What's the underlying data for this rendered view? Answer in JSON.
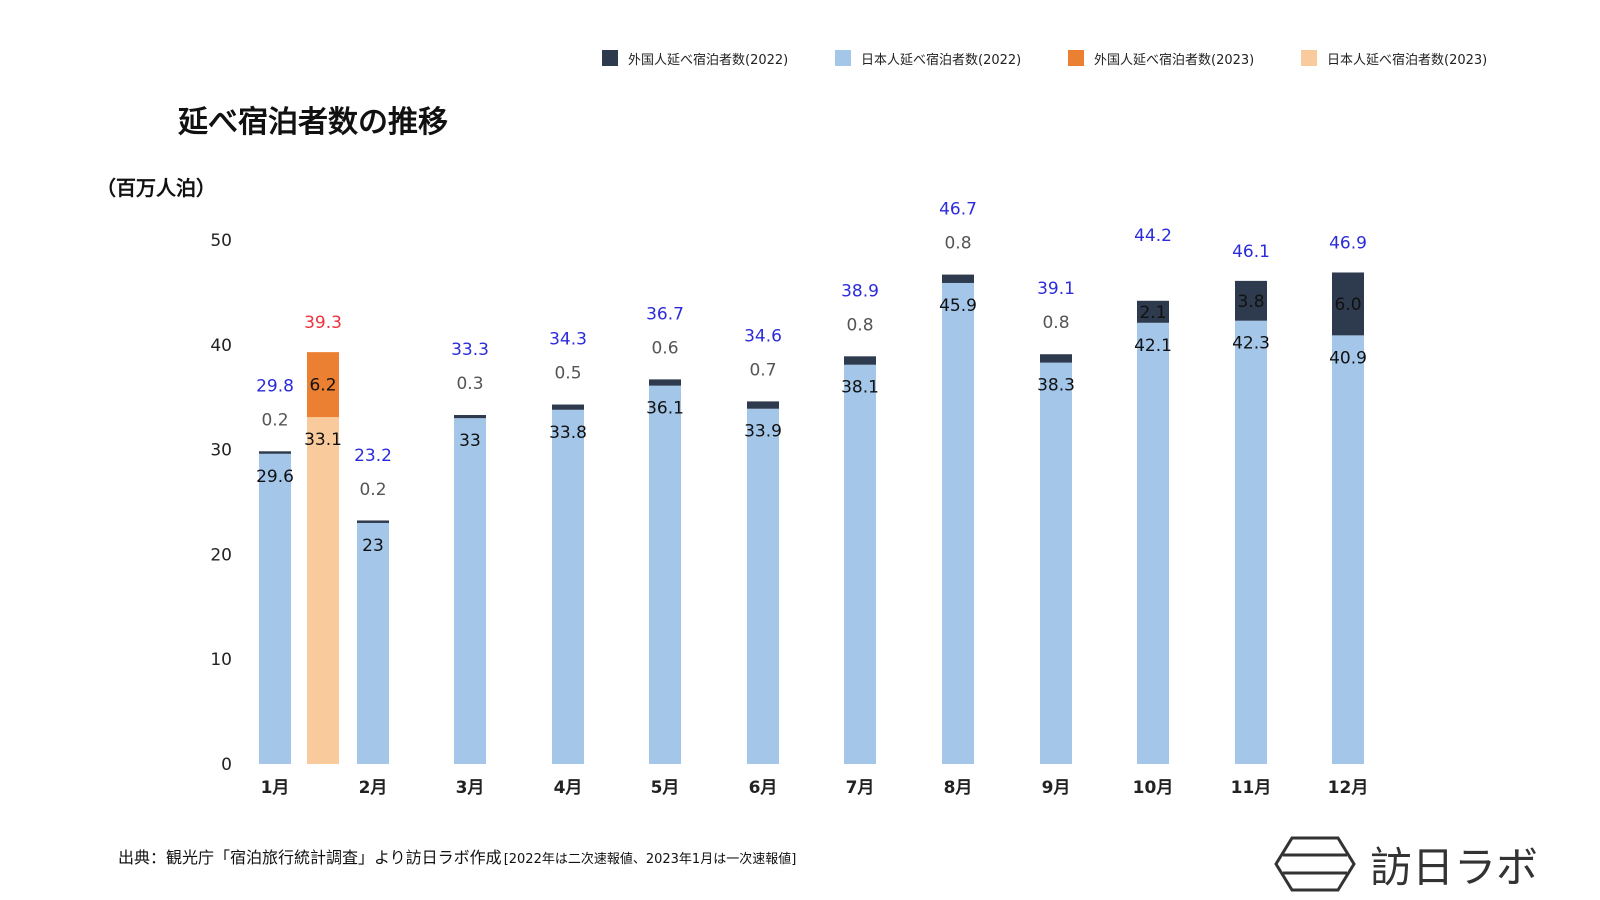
{
  "colors": {
    "foreign_2022": "#2e3a4e",
    "japanese_2022": "#a3c6e9",
    "foreign_2023": "#ec8032",
    "japanese_2023": "#f9cb9c",
    "total_2022": "#2b2bdc",
    "total_2023": "#f0313c"
  },
  "footer": {
    "source": "出典：観光庁「宿泊旅行統計調査」より訪日ラボ作成",
    "note": "[2022年は二次速報値、2023年1月は一次速報値]"
  },
  "brand": {
    "name": "訪日ラボ",
    "icon": "hexagon-logo-icon"
  },
  "chart_data": {
    "type": "bar",
    "stacked": true,
    "title": "延べ宿泊者数の推移",
    "ylabel": "（百万人泊）",
    "ylim": [
      0,
      50
    ],
    "yticks": [
      0,
      10,
      20,
      30,
      40,
      50
    ],
    "grid": false,
    "legend_position": "top-right",
    "legend": [
      {
        "label": "外国人延べ宿泊者数(2022)",
        "color_key": "foreign_2022"
      },
      {
        "label": "日本人延べ宿泊者数(2022)",
        "color_key": "japanese_2022"
      },
      {
        "label": "外国人延べ宿泊者数(2023)",
        "color_key": "foreign_2023"
      },
      {
        "label": "日本人延べ宿泊者数(2023)",
        "color_key": "japanese_2023"
      }
    ],
    "categories": [
      "1月",
      "2月",
      "3月",
      "4月",
      "5月",
      "6月",
      "7月",
      "8月",
      "9月",
      "10月",
      "11月",
      "12月"
    ],
    "bars": [
      {
        "category": "1月",
        "year": "2022",
        "japanese": 29.6,
        "foreign": 0.2,
        "total": 29.8,
        "japanese_label": "29.6",
        "foreign_label": "0.2",
        "total_label": "29.8"
      },
      {
        "category": "1月",
        "year": "2023",
        "japanese": 33.1,
        "foreign": 6.2,
        "total": 39.3,
        "japanese_label": "33.1",
        "foreign_label": "6.2",
        "total_label": "39.3"
      },
      {
        "category": "2月",
        "year": "2022",
        "japanese": 23,
        "foreign": 0.2,
        "total": 23.2,
        "japanese_label": "23",
        "foreign_label": "0.2",
        "total_label": "23.2"
      },
      {
        "category": "3月",
        "year": "2022",
        "japanese": 33,
        "foreign": 0.3,
        "total": 33.3,
        "japanese_label": "33",
        "foreign_label": "0.3",
        "total_label": "33.3"
      },
      {
        "category": "4月",
        "year": "2022",
        "japanese": 33.8,
        "foreign": 0.5,
        "total": 34.3,
        "japanese_label": "33.8",
        "foreign_label": "0.5",
        "total_label": "34.3"
      },
      {
        "category": "5月",
        "year": "2022",
        "japanese": 36.1,
        "foreign": 0.6,
        "total": 36.7,
        "japanese_label": "36.1",
        "foreign_label": "0.6",
        "total_label": "36.7"
      },
      {
        "category": "6月",
        "year": "2022",
        "japanese": 33.9,
        "foreign": 0.7,
        "total": 34.6,
        "japanese_label": "33.9",
        "foreign_label": "0.7",
        "total_label": "34.6"
      },
      {
        "category": "7月",
        "year": "2022",
        "japanese": 38.1,
        "foreign": 0.8,
        "total": 38.9,
        "japanese_label": "38.1",
        "foreign_label": "0.8",
        "total_label": "38.9"
      },
      {
        "category": "8月",
        "year": "2022",
        "japanese": 45.9,
        "foreign": 0.8,
        "total": 46.7,
        "japanese_label": "45.9",
        "foreign_label": "0.8",
        "total_label": "46.7"
      },
      {
        "category": "9月",
        "year": "2022",
        "japanese": 38.3,
        "foreign": 0.8,
        "total": 39.1,
        "japanese_label": "38.3",
        "foreign_label": "0.8",
        "total_label": "39.1"
      },
      {
        "category": "10月",
        "year": "2022",
        "japanese": 42.1,
        "foreign": 2.1,
        "total": 44.2,
        "japanese_label": "42.1",
        "foreign_label": "2.1",
        "total_label": "44.2"
      },
      {
        "category": "11月",
        "year": "2022",
        "japanese": 42.3,
        "foreign": 3.8,
        "total": 46.1,
        "japanese_label": "42.3",
        "foreign_label": "3.8",
        "total_label": "46.1"
      },
      {
        "category": "12月",
        "year": "2022",
        "japanese": 40.9,
        "foreign": 6.0,
        "total": 46.9,
        "japanese_label": "40.9",
        "foreign_label": "6.0",
        "total_label": "46.9"
      }
    ]
  }
}
